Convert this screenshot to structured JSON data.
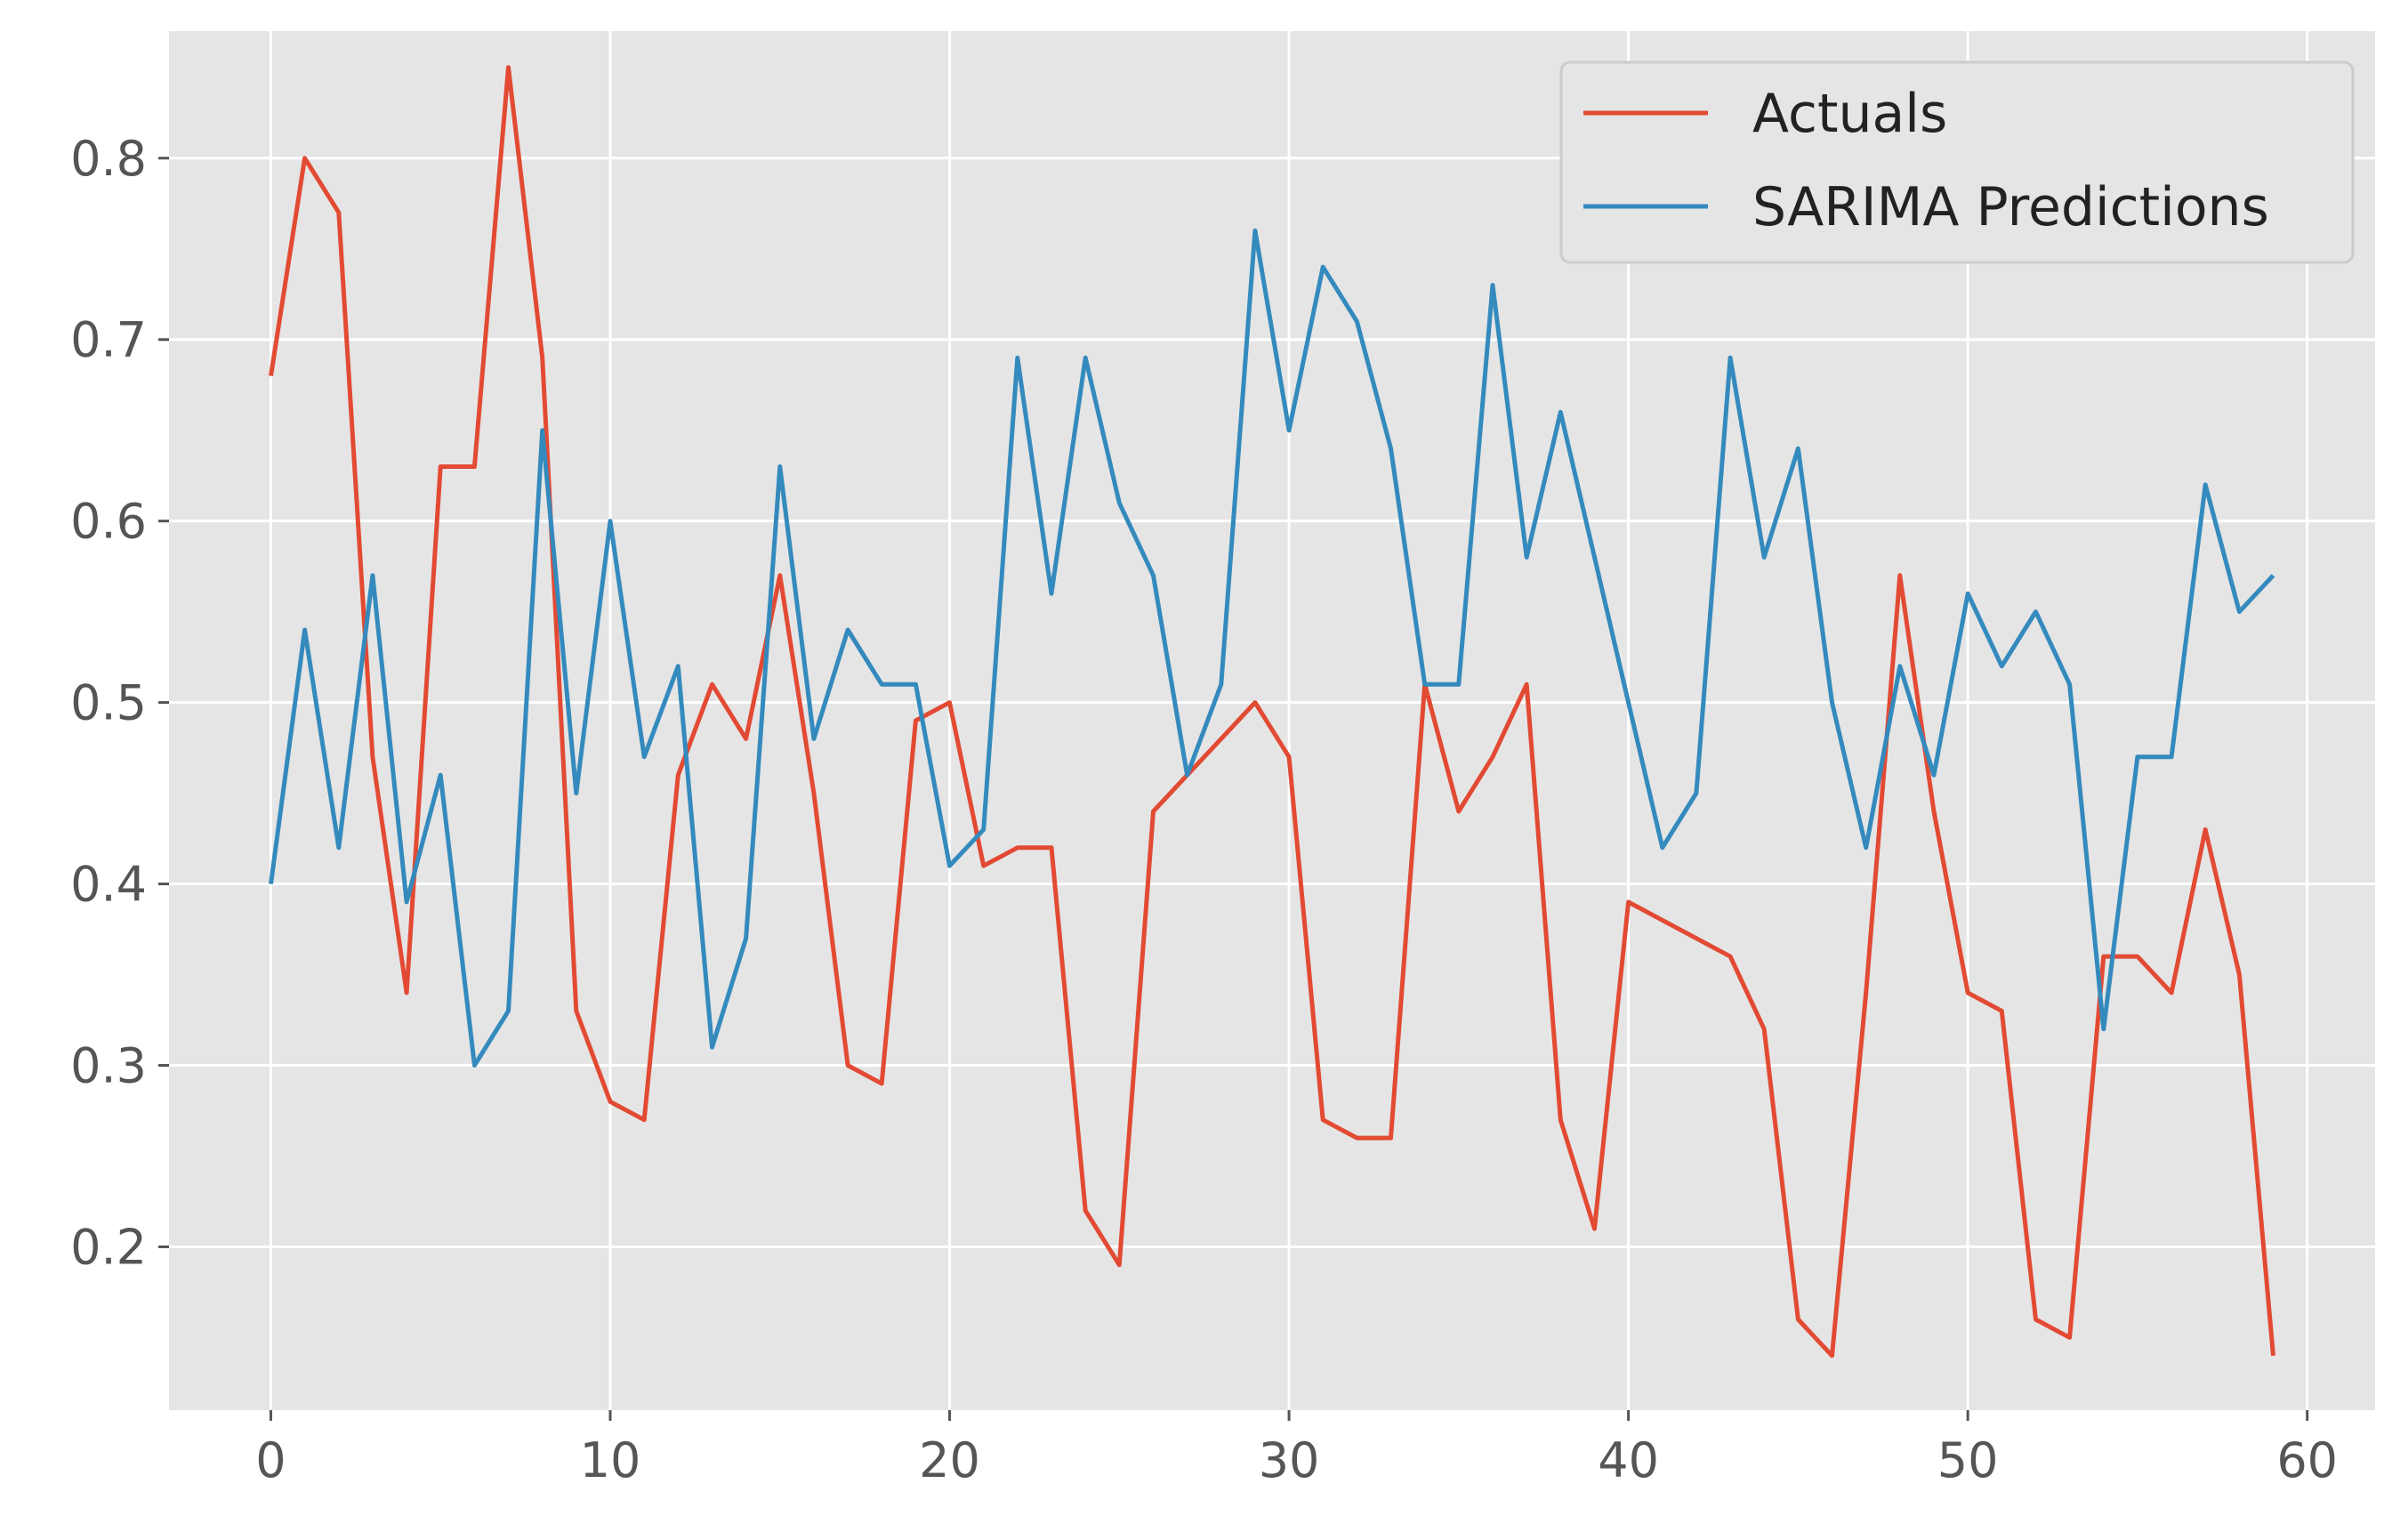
{
  "chart_data": {
    "type": "line",
    "title": "",
    "xlabel": "",
    "ylabel": "",
    "xlim": [
      -3,
      62
    ],
    "ylim": [
      0.11,
      0.87
    ],
    "x_ticks": [
      0,
      10,
      20,
      30,
      40,
      50,
      60
    ],
    "x_tick_labels": [
      "0",
      "10",
      "20",
      "30",
      "40",
      "50",
      "60"
    ],
    "y_ticks": [
      0.2,
      0.3,
      0.4,
      0.5,
      0.6,
      0.7,
      0.8
    ],
    "y_tick_labels": [
      "0.2",
      "0.3",
      "0.4",
      "0.5",
      "0.6",
      "0.7",
      "0.8"
    ],
    "grid": true,
    "legend_position": "top-right",
    "x": [
      0,
      1,
      2,
      3,
      4,
      5,
      6,
      7,
      8,
      9,
      10,
      11,
      12,
      13,
      14,
      15,
      16,
      17,
      18,
      19,
      20,
      21,
      22,
      23,
      24,
      25,
      26,
      27,
      28,
      29,
      30,
      31,
      32,
      33,
      34,
      35,
      36,
      37,
      38,
      39,
      40,
      41,
      42,
      43,
      44,
      45,
      46,
      47,
      48,
      49,
      50,
      51,
      52,
      53,
      54,
      55,
      56,
      57,
      58,
      59
    ],
    "series": [
      {
        "name": "Actuals",
        "color": "#e24a33",
        "values": [
          0.68,
          0.8,
          0.77,
          0.47,
          0.34,
          0.63,
          0.63,
          0.85,
          0.69,
          0.33,
          0.28,
          0.27,
          0.46,
          0.51,
          0.48,
          0.57,
          0.45,
          0.3,
          0.29,
          0.49,
          0.5,
          0.41,
          0.42,
          0.42,
          0.22,
          0.19,
          0.44,
          0.46,
          0.48,
          0.5,
          0.47,
          0.27,
          0.26,
          0.26,
          0.51,
          0.44,
          0.47,
          0.51,
          0.27,
          0.21,
          0.39,
          0.38,
          0.37,
          0.36,
          0.32,
          0.16,
          0.14,
          0.34,
          0.57,
          0.44,
          0.34,
          0.33,
          0.16,
          0.15,
          0.36,
          0.36,
          0.34,
          0.43,
          0.35,
          0.14
        ]
      },
      {
        "name": "SARIMA Predictions",
        "color": "#348abd",
        "values": [
          0.4,
          0.54,
          0.42,
          0.57,
          0.39,
          0.46,
          0.3,
          0.33,
          0.65,
          0.45,
          0.6,
          0.47,
          0.52,
          0.31,
          0.37,
          0.63,
          0.48,
          0.54,
          0.51,
          0.51,
          0.41,
          0.43,
          0.69,
          0.56,
          0.69,
          0.61,
          0.57,
          0.46,
          0.51,
          0.76,
          0.65,
          0.74,
          0.71,
          0.64,
          0.51,
          0.51,
          0.73,
          0.58,
          0.66,
          0.58,
          0.5,
          0.42,
          0.45,
          0.69,
          0.58,
          0.64,
          0.5,
          0.42,
          0.52,
          0.46,
          0.56,
          0.52,
          0.55,
          0.51,
          0.32,
          0.47,
          0.47,
          0.62,
          0.55,
          0.57
        ]
      }
    ]
  }
}
